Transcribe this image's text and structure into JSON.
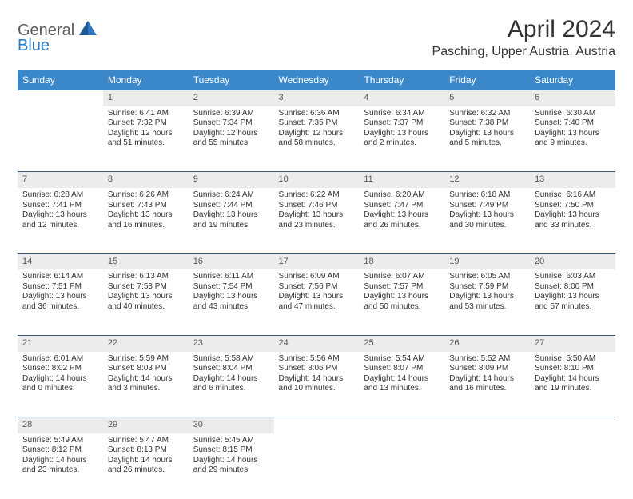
{
  "logo": {
    "line1": "General",
    "line2": "Blue"
  },
  "title": "April 2024",
  "location": "Pasching, Upper Austria, Austria",
  "colors": {
    "header_bg": "#3a87c9",
    "header_text": "#ffffff",
    "daynum_bg": "#ececec",
    "row_divider": "#3a5a78",
    "body_text": "#333333",
    "logo_gray": "#5b5b5b",
    "logo_blue": "#2b79c2",
    "page_bg": "#ffffff"
  },
  "typography": {
    "title_fontsize": 30,
    "location_fontsize": 16,
    "header_fontsize": 12,
    "daynum_fontsize": 11,
    "cell_fontsize": 10
  },
  "day_headers": [
    "Sunday",
    "Monday",
    "Tuesday",
    "Wednesday",
    "Thursday",
    "Friday",
    "Saturday"
  ],
  "weeks": [
    [
      null,
      {
        "n": "1",
        "sr": "6:41 AM",
        "ss": "7:32 PM",
        "dl": "12 hours and 51 minutes."
      },
      {
        "n": "2",
        "sr": "6:39 AM",
        "ss": "7:34 PM",
        "dl": "12 hours and 55 minutes."
      },
      {
        "n": "3",
        "sr": "6:36 AM",
        "ss": "7:35 PM",
        "dl": "12 hours and 58 minutes."
      },
      {
        "n": "4",
        "sr": "6:34 AM",
        "ss": "7:37 PM",
        "dl": "13 hours and 2 minutes."
      },
      {
        "n": "5",
        "sr": "6:32 AM",
        "ss": "7:38 PM",
        "dl": "13 hours and 5 minutes."
      },
      {
        "n": "6",
        "sr": "6:30 AM",
        "ss": "7:40 PM",
        "dl": "13 hours and 9 minutes."
      }
    ],
    [
      {
        "n": "7",
        "sr": "6:28 AM",
        "ss": "7:41 PM",
        "dl": "13 hours and 12 minutes."
      },
      {
        "n": "8",
        "sr": "6:26 AM",
        "ss": "7:43 PM",
        "dl": "13 hours and 16 minutes."
      },
      {
        "n": "9",
        "sr": "6:24 AM",
        "ss": "7:44 PM",
        "dl": "13 hours and 19 minutes."
      },
      {
        "n": "10",
        "sr": "6:22 AM",
        "ss": "7:46 PM",
        "dl": "13 hours and 23 minutes."
      },
      {
        "n": "11",
        "sr": "6:20 AM",
        "ss": "7:47 PM",
        "dl": "13 hours and 26 minutes."
      },
      {
        "n": "12",
        "sr": "6:18 AM",
        "ss": "7:49 PM",
        "dl": "13 hours and 30 minutes."
      },
      {
        "n": "13",
        "sr": "6:16 AM",
        "ss": "7:50 PM",
        "dl": "13 hours and 33 minutes."
      }
    ],
    [
      {
        "n": "14",
        "sr": "6:14 AM",
        "ss": "7:51 PM",
        "dl": "13 hours and 36 minutes."
      },
      {
        "n": "15",
        "sr": "6:13 AM",
        "ss": "7:53 PM",
        "dl": "13 hours and 40 minutes."
      },
      {
        "n": "16",
        "sr": "6:11 AM",
        "ss": "7:54 PM",
        "dl": "13 hours and 43 minutes."
      },
      {
        "n": "17",
        "sr": "6:09 AM",
        "ss": "7:56 PM",
        "dl": "13 hours and 47 minutes."
      },
      {
        "n": "18",
        "sr": "6:07 AM",
        "ss": "7:57 PM",
        "dl": "13 hours and 50 minutes."
      },
      {
        "n": "19",
        "sr": "6:05 AM",
        "ss": "7:59 PM",
        "dl": "13 hours and 53 minutes."
      },
      {
        "n": "20",
        "sr": "6:03 AM",
        "ss": "8:00 PM",
        "dl": "13 hours and 57 minutes."
      }
    ],
    [
      {
        "n": "21",
        "sr": "6:01 AM",
        "ss": "8:02 PM",
        "dl": "14 hours and 0 minutes."
      },
      {
        "n": "22",
        "sr": "5:59 AM",
        "ss": "8:03 PM",
        "dl": "14 hours and 3 minutes."
      },
      {
        "n": "23",
        "sr": "5:58 AM",
        "ss": "8:04 PM",
        "dl": "14 hours and 6 minutes."
      },
      {
        "n": "24",
        "sr": "5:56 AM",
        "ss": "8:06 PM",
        "dl": "14 hours and 10 minutes."
      },
      {
        "n": "25",
        "sr": "5:54 AM",
        "ss": "8:07 PM",
        "dl": "14 hours and 13 minutes."
      },
      {
        "n": "26",
        "sr": "5:52 AM",
        "ss": "8:09 PM",
        "dl": "14 hours and 16 minutes."
      },
      {
        "n": "27",
        "sr": "5:50 AM",
        "ss": "8:10 PM",
        "dl": "14 hours and 19 minutes."
      }
    ],
    [
      {
        "n": "28",
        "sr": "5:49 AM",
        "ss": "8:12 PM",
        "dl": "14 hours and 23 minutes."
      },
      {
        "n": "29",
        "sr": "5:47 AM",
        "ss": "8:13 PM",
        "dl": "14 hours and 26 minutes."
      },
      {
        "n": "30",
        "sr": "5:45 AM",
        "ss": "8:15 PM",
        "dl": "14 hours and 29 minutes."
      },
      null,
      null,
      null,
      null
    ]
  ],
  "labels": {
    "sunrise": "Sunrise:",
    "sunset": "Sunset:",
    "daylight": "Daylight:"
  }
}
